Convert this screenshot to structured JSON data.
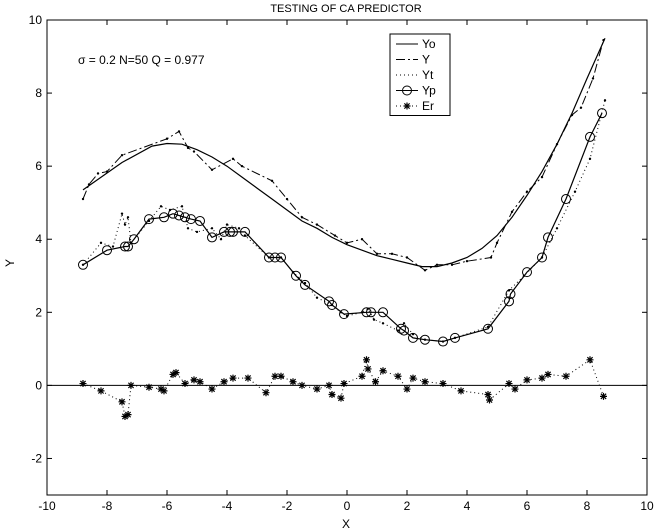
{
  "chart_data": {
    "type": "line",
    "title": "TESTING OF CA PREDICTOR",
    "xlabel": "X",
    "ylabel": "Y",
    "xlim": [
      -10,
      10
    ],
    "ylim": [
      -3,
      10
    ],
    "xticks": [
      -10,
      -8,
      -6,
      -4,
      -2,
      0,
      2,
      4,
      6,
      8,
      10
    ],
    "yticks": [
      -2,
      0,
      2,
      4,
      6,
      8,
      10
    ],
    "grid": false,
    "legend_position": "top-right",
    "annotation": "σ = 0.2   N=50  Q = 0.977",
    "series": [
      {
        "name": "Yo",
        "style": "solid",
        "marker": "none",
        "color": "#000000",
        "x": [
          -8.8,
          -7.5,
          -6.5,
          -6.0,
          -5.5,
          -5.0,
          -4.5,
          -4.0,
          -3.5,
          -3.0,
          -2.5,
          -2.0,
          -1.5,
          -1.0,
          -0.5,
          0.0,
          0.5,
          1.0,
          1.5,
          2.0,
          2.5,
          3.0,
          3.5,
          4.0,
          4.5,
          5.0,
          5.5,
          6.0,
          6.5,
          7.0,
          7.5,
          8.0,
          8.6
        ],
        "y": [
          5.35,
          6.1,
          6.55,
          6.62,
          6.6,
          6.45,
          6.25,
          6.0,
          5.7,
          5.4,
          5.1,
          4.8,
          4.5,
          4.3,
          4.05,
          3.85,
          3.7,
          3.55,
          3.45,
          3.35,
          3.25,
          3.25,
          3.35,
          3.5,
          3.75,
          4.1,
          4.6,
          5.2,
          5.85,
          6.6,
          7.45,
          8.4,
          9.5
        ]
      },
      {
        "name": "Y",
        "style": "dashdot",
        "marker": "dot",
        "color": "#000000",
        "x": [
          -8.8,
          -8.6,
          -8.3,
          -8.0,
          -7.5,
          -6.0,
          -5.6,
          -5.3,
          -5.1,
          -4.5,
          -3.8,
          -3.5,
          -2.5,
          -2.0,
          -1.5,
          -1.0,
          -0.4,
          0.0,
          0.5,
          1.0,
          1.5,
          2.0,
          2.6,
          3.0,
          3.5,
          4.0,
          4.8,
          5.0,
          5.5,
          6.0,
          6.5,
          7.0,
          7.5,
          7.8,
          8.2,
          8.55
        ],
        "y": [
          5.1,
          5.5,
          5.8,
          5.85,
          6.3,
          6.75,
          6.95,
          6.5,
          6.4,
          5.9,
          6.2,
          6.0,
          5.6,
          5.1,
          4.6,
          4.4,
          4.1,
          3.9,
          4.0,
          3.6,
          3.6,
          3.5,
          3.15,
          3.3,
          3.3,
          3.4,
          3.5,
          3.9,
          4.75,
          5.3,
          5.7,
          6.6,
          7.4,
          7.6,
          8.4,
          9.45
        ]
      },
      {
        "name": "Yt",
        "style": "dotted",
        "marker": "dot",
        "color": "#000000",
        "x": [
          -8.8,
          -8.2,
          -7.8,
          -7.5,
          -7.4,
          -7.3,
          -7.2,
          -6.6,
          -6.2,
          -5.9,
          -5.5,
          -5.3,
          -5.0,
          -4.5,
          -4.2,
          -4.0,
          -3.6,
          -3.4,
          -2.6,
          -2.2,
          -1.8,
          -1.4,
          -1.0,
          -0.5,
          -0.2,
          0.0,
          0.5,
          0.7,
          0.9,
          1.2,
          1.7,
          1.9,
          2.2,
          2.6,
          3.2,
          3.6,
          4.7,
          5.4,
          5.9,
          6.5,
          7.0,
          7.6,
          8.1,
          8.6
        ],
        "y": [
          3.3,
          3.9,
          3.8,
          4.7,
          4.4,
          4.6,
          3.9,
          4.5,
          4.9,
          4.8,
          4.9,
          4.3,
          4.2,
          4.3,
          4.0,
          4.4,
          4.3,
          4.1,
          3.5,
          3.5,
          3.1,
          2.8,
          2.4,
          2.2,
          2.0,
          1.9,
          2.0,
          2.1,
          1.8,
          1.7,
          1.5,
          1.7,
          1.4,
          1.25,
          1.2,
          1.3,
          1.6,
          2.6,
          3.0,
          3.5,
          4.3,
          5.3,
          6.2,
          7.8
        ]
      },
      {
        "name": "Yp",
        "style": "solid",
        "marker": "circle",
        "color": "#000000",
        "x": [
          -8.8,
          -8.0,
          -7.4,
          -7.3,
          -7.1,
          -6.6,
          -6.1,
          -5.8,
          -5.6,
          -5.4,
          -5.2,
          -4.9,
          -4.5,
          -4.1,
          -3.9,
          -3.8,
          -3.4,
          -2.6,
          -2.4,
          -2.2,
          -1.7,
          -1.4,
          -0.6,
          -0.5,
          -0.1,
          0.65,
          0.8,
          1.2,
          1.8,
          1.9,
          2.2,
          2.6,
          3.2,
          3.6,
          4.7,
          5.4,
          5.45,
          6.0,
          6.5,
          6.7,
          7.3,
          8.1,
          8.5
        ],
        "y": [
          3.3,
          3.7,
          3.8,
          3.8,
          4.0,
          4.55,
          4.6,
          4.7,
          4.65,
          4.6,
          4.55,
          4.5,
          4.05,
          4.2,
          4.2,
          4.2,
          4.2,
          3.5,
          3.5,
          3.5,
          3.0,
          2.75,
          2.3,
          2.2,
          1.95,
          2.0,
          2.0,
          2.0,
          1.55,
          1.5,
          1.3,
          1.25,
          1.2,
          1.3,
          1.55,
          2.3,
          2.5,
          3.1,
          3.5,
          4.05,
          5.1,
          6.8,
          7.45
        ]
      },
      {
        "name": "Er",
        "style": "dotted",
        "marker": "star",
        "color": "#000000",
        "x": [
          -8.8,
          -8.2,
          -7.5,
          -7.4,
          -7.3,
          -7.2,
          -6.6,
          -6.2,
          -6.1,
          -5.8,
          -5.7,
          -5.4,
          -5.1,
          -4.9,
          -4.5,
          -4.1,
          -3.8,
          -3.3,
          -2.7,
          -2.4,
          -2.2,
          -1.8,
          -1.5,
          -1.0,
          -0.6,
          -0.5,
          -0.2,
          -0.1,
          0.5,
          0.65,
          0.7,
          0.95,
          1.2,
          1.7,
          2.0,
          2.2,
          2.6,
          3.2,
          3.8,
          4.7,
          4.75,
          5.4,
          5.6,
          6.0,
          6.5,
          6.7,
          7.3,
          8.1,
          8.55
        ],
        "y": [
          0.05,
          -0.15,
          -0.45,
          -0.85,
          -0.8,
          0.0,
          -0.05,
          -0.1,
          -0.15,
          0.3,
          0.35,
          0.05,
          0.15,
          0.1,
          -0.1,
          0.1,
          0.2,
          0.2,
          -0.2,
          0.25,
          0.25,
          0.1,
          0.0,
          -0.1,
          0.0,
          -0.25,
          -0.35,
          0.05,
          0.25,
          0.7,
          0.45,
          0.1,
          0.4,
          0.25,
          -0.1,
          0.2,
          0.1,
          0.05,
          -0.15,
          -0.25,
          -0.4,
          0.05,
          -0.1,
          0.15,
          0.2,
          0.3,
          0.25,
          0.7,
          -0.3
        ]
      }
    ]
  }
}
